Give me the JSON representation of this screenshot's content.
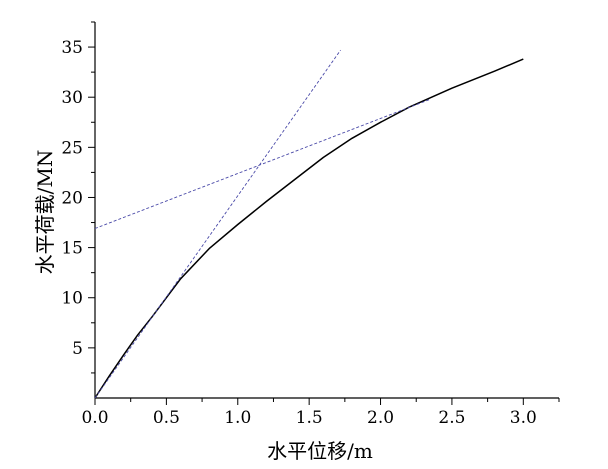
{
  "chart_data": {
    "type": "line",
    "title": "",
    "xlabel": "水平位移/m",
    "ylabel": "水平荷载/MN",
    "xlim": [
      0,
      3.25
    ],
    "ylim": [
      0,
      37.5
    ],
    "x_ticks": [
      "0.0",
      "0.5",
      "1.0",
      "1.5",
      "2.0",
      "2.5",
      "3.0"
    ],
    "y_ticks": [
      "5",
      "10",
      "15",
      "20",
      "25",
      "30",
      "35"
    ],
    "x_tick_values": [
      0,
      0.5,
      1.0,
      1.5,
      2.0,
      2.5,
      3.0
    ],
    "y_tick_values": [
      5,
      10,
      15,
      20,
      25,
      30,
      35
    ],
    "grid": false,
    "legend": "none",
    "series": [
      {
        "style": "solid",
        "color": "#000000",
        "x": [
          0,
          0.1,
          0.2,
          0.3,
          0.4,
          0.5,
          0.6,
          0.8,
          1.0,
          1.2,
          1.4,
          1.6,
          1.8,
          2.0,
          2.2,
          2.5,
          2.8,
          3.0
        ],
        "y": [
          0,
          2.2,
          4.3,
          6.3,
          8.1,
          10.0,
          11.9,
          14.9,
          17.3,
          19.6,
          21.8,
          24.0,
          25.9,
          27.5,
          29.0,
          30.9,
          32.6,
          33.8
        ]
      },
      {
        "style": "dashed",
        "color": "#4a4aa8",
        "x": [
          0,
          1.72
        ],
        "y": [
          0,
          34.7
        ]
      },
      {
        "style": "dashed",
        "color": "#4a4aa8",
        "x": [
          0,
          2.35
        ],
        "y": [
          16.9,
          29.8
        ]
      }
    ]
  }
}
